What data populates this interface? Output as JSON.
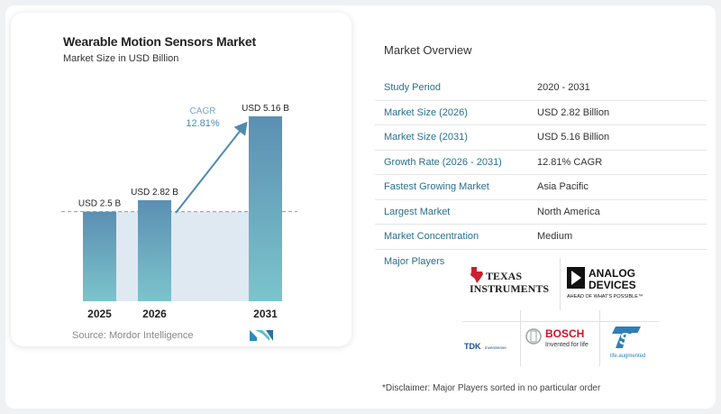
{
  "chart": {
    "title": "Wearable Motion Sensors Market",
    "subtitle": "Market Size in USD Billion",
    "source": "Source:  Mordor Intelligence",
    "cagr_label": "CAGR",
    "cagr_value": "12.81%"
  },
  "chart_data": {
    "type": "bar",
    "categories": [
      "2025",
      "2026",
      "2031"
    ],
    "values": [
      2.5,
      2.82,
      5.16
    ],
    "data_labels": [
      "USD 2.5 B",
      "USD 2.82 B",
      "USD 5.16 B"
    ],
    "title": "Wearable Motion Sensors Market",
    "subtitle": "Market Size in USD Billion",
    "xlabel": "",
    "ylabel": "",
    "ylim": [
      0,
      5.16
    ],
    "grid": false,
    "annotation": "CAGR 12.81%",
    "colors": {
      "bar_top": "#5b8fb2",
      "bar_bottom": "#7cc4cc",
      "band": "#dfe9f2",
      "arrow": "#4f8ab0"
    }
  },
  "overview": {
    "title": "Market Overview",
    "rows": [
      {
        "label": "Study Period",
        "value": "2020 - 2031"
      },
      {
        "label": "Market Size (2026)",
        "value": "USD 2.82 Billion"
      },
      {
        "label": "Market Size (2031)",
        "value": "USD 5.16 Billion"
      },
      {
        "label": "Growth Rate (2026 - 2031)",
        "value": "12.81% CAGR"
      },
      {
        "label": "Fastest Growing Market",
        "value": "Asia Pacific"
      },
      {
        "label": "Largest Market",
        "value": "North America"
      },
      {
        "label": "Market Concentration",
        "value": "Medium"
      }
    ]
  },
  "players": {
    "label": "Major Players",
    "ti_line1": "TEXAS",
    "ti_line2": "INSTRUMENTS",
    "adi_line1": "ANALOG",
    "adi_line2": "DEVICES",
    "adi_tagline": "AHEAD OF WHAT'S POSSIBLE™",
    "tdk_name": "TDK",
    "tdk_tagline": "InvenSense",
    "bosch_name": "BOSCH",
    "bosch_tagline": "Invented for life",
    "st_tagline": "life.augmented"
  },
  "disclaimer": "*Disclaimer: Major Players sorted in no particular order"
}
